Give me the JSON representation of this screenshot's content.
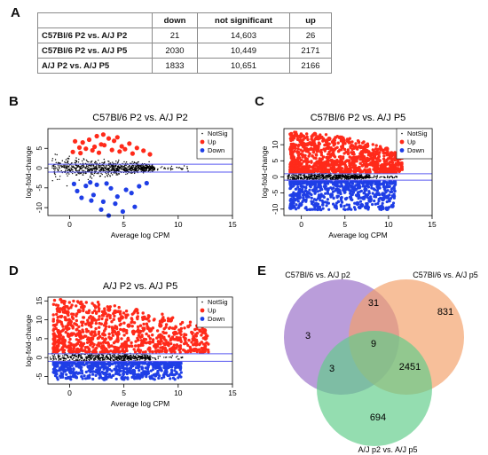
{
  "panels": {
    "a": "A",
    "b": "B",
    "c": "C",
    "d": "D",
    "e": "E"
  },
  "table": {
    "headers": [
      "",
      "down",
      "not significant",
      "up"
    ],
    "rows": [
      {
        "label": "C57Bl/6 P2 vs. A/J P2",
        "down": "21",
        "ns": "14,603",
        "up": "26"
      },
      {
        "label": "C57Bl/6 P2 vs. A/J P5",
        "down": "2030",
        "ns": "10,449",
        "up": "2171"
      },
      {
        "label": "A/J P2 vs. A/J P5",
        "down": "1833",
        "ns": "10,651",
        "up": "2166"
      }
    ]
  },
  "colors": {
    "notsig": "#000000",
    "up": "#ff2a1a",
    "down": "#1f3ee6",
    "hline": "#5a5af0",
    "venn_purple": "#9a6fc8",
    "venn_orange": "#f3a06a",
    "venn_green": "#61cd8a"
  },
  "chart_data": [
    {
      "type": "scatter",
      "title": "C57Bl/6 P2 vs. A/J P2",
      "xlabel": "Average log CPM",
      "ylabel": "log-fold-change",
      "xlim": [
        -2,
        15
      ],
      "ylim": [
        -12,
        10
      ],
      "xticks": [
        0,
        5,
        10,
        15
      ],
      "yticks": [
        -10,
        -5,
        0,
        5
      ],
      "threshold": 1,
      "legend": {
        "position": "top-right",
        "entries": [
          "NotSig",
          "Up",
          "Down"
        ]
      },
      "series": [
        {
          "name": "Up",
          "points": [
            [
              1.2,
              6.5
            ],
            [
              1.8,
              7.2
            ],
            [
              2.5,
              8.1
            ],
            [
              3.2,
              5.8
            ],
            [
              4.1,
              6.9
            ],
            [
              4.8,
              5.5
            ],
            [
              5.5,
              6.2
            ],
            [
              2.1,
              4.5
            ],
            [
              0.5,
              6.8
            ],
            [
              3.6,
              7.5
            ],
            [
              6.2,
              5.1
            ],
            [
              1.5,
              4.9
            ],
            [
              2.9,
              6.0
            ],
            [
              3.9,
              4.6
            ],
            [
              5.1,
              4.8
            ],
            [
              2.3,
              5.4
            ],
            [
              4.4,
              7.8
            ],
            [
              0.9,
              5.2
            ],
            [
              6.8,
              4.4
            ],
            [
              3.1,
              8.5
            ],
            [
              1.0,
              3.8
            ],
            [
              2.7,
              3.9
            ],
            [
              5.8,
              3.7
            ],
            [
              4.6,
              4.2
            ],
            [
              7.4,
              3.5
            ],
            [
              0.3,
              4.1
            ]
          ]
        },
        {
          "name": "Down",
          "points": [
            [
              1.5,
              -4.5
            ],
            [
              2.2,
              -6.8
            ],
            [
              3.1,
              -8.5
            ],
            [
              4.4,
              -7.2
            ],
            [
              5.2,
              -5.5
            ],
            [
              6.0,
              -9.8
            ],
            [
              2.9,
              -10.5
            ],
            [
              3.8,
              -5.1
            ],
            [
              1.1,
              -7.5
            ],
            [
              4.9,
              -11.0
            ],
            [
              0.7,
              -5.8
            ],
            [
              2.5,
              -4.2
            ],
            [
              5.7,
              -6.3
            ],
            [
              3.4,
              -3.9
            ],
            [
              6.4,
              -4.6
            ],
            [
              4.2,
              -9.0
            ],
            [
              1.9,
              -3.6
            ],
            [
              7.1,
              -3.8
            ],
            [
              3.6,
              -12.0
            ],
            [
              2.0,
              -8.2
            ],
            [
              0.4,
              -4.0
            ]
          ]
        }
      ]
    },
    {
      "type": "scatter",
      "title": "C57Bl/6 P2 vs. A/J P5",
      "xlabel": "Average log CPM",
      "ylabel": "log-fold-change",
      "xlim": [
        -2,
        15
      ],
      "ylim": [
        -12,
        15
      ],
      "xticks": [
        0,
        5,
        10,
        15
      ],
      "yticks": [
        -10,
        -5,
        0,
        5,
        10
      ],
      "threshold": 1,
      "legend": {
        "position": "top-right",
        "entries": [
          "NotSig",
          "Up",
          "Down"
        ]
      }
    },
    {
      "type": "scatter",
      "title": "A/J P2 vs. A/J P5",
      "xlabel": "Average log CPM",
      "ylabel": "log-fold-change",
      "xlim": [
        -2,
        15
      ],
      "ylim": [
        -7,
        16
      ],
      "xticks": [
        0,
        5,
        10,
        15
      ],
      "yticks": [
        -5,
        0,
        5,
        10,
        15
      ],
      "threshold": 1,
      "legend": {
        "position": "top-right",
        "entries": [
          "NotSig",
          "Up",
          "Down"
        ]
      }
    },
    {
      "type": "venn",
      "sets": [
        "C57Bl/6 vs. A/J p2",
        "C57Bl/6 vs. A/J p5",
        "A/J p2 vs. A/J p5"
      ],
      "regions": {
        "only_a": "3",
        "a_b": "31",
        "only_b": "831",
        "a_b_c": "9",
        "a_c": "3",
        "b_c": "2451",
        "only_c": "694"
      }
    }
  ]
}
